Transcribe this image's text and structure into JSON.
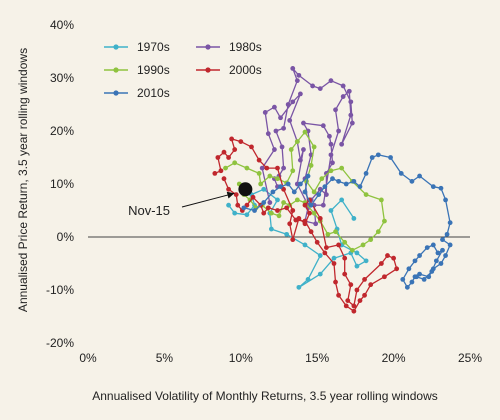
{
  "chart_data": {
    "type": "scatter",
    "title": "",
    "xlabel": "Annualised Volatility of Monthly Returns, 3.5 year rolling windows",
    "ylabel": "Annualised Price Return, 3.5 year rolling windows",
    "xlim": [
      0,
      25
    ],
    "ylim": [
      -20,
      40
    ],
    "x_ticks": [
      0,
      5,
      10,
      15,
      20,
      25
    ],
    "y_ticks": [
      -20,
      -10,
      0,
      10,
      20,
      30,
      40
    ],
    "x_tick_labels": [
      "0%",
      "5%",
      "10%",
      "15%",
      "20%",
      "25%"
    ],
    "y_tick_labels": [
      "-20%",
      "-10%",
      "0%",
      "10%",
      "20%",
      "30%",
      "40%"
    ],
    "negative_tick_color": "#c0272d",
    "legend_position": "top-left",
    "series": [
      {
        "name": "1970s",
        "color": "#3fb1c9",
        "points": [
          [
            9.2,
            6
          ],
          [
            9.6,
            4.5
          ],
          [
            10.4,
            4.2
          ],
          [
            10.9,
            6
          ],
          [
            10.7,
            8
          ],
          [
            11.5,
            9
          ],
          [
            12.4,
            7
          ],
          [
            11.9,
            4.5
          ],
          [
            12,
            1.5
          ],
          [
            13,
            0.5
          ],
          [
            14.2,
            -1.5
          ],
          [
            15.2,
            -3.5
          ],
          [
            14.4,
            -8
          ],
          [
            13.8,
            -9.5
          ],
          [
            15.2,
            -7
          ],
          [
            16.1,
            -4
          ],
          [
            17.2,
            -3
          ],
          [
            17.6,
            -5.5
          ],
          [
            18.2,
            -4.5
          ],
          [
            17.6,
            -3
          ],
          [
            16.6,
            -1.5
          ],
          [
            16.3,
            1.5
          ],
          [
            15.9,
            5
          ],
          [
            16.6,
            7
          ],
          [
            17.4,
            3.5
          ]
        ]
      },
      {
        "name": "1980s",
        "color": "#7a55a5",
        "points": [
          [
            11.9,
            6.5
          ],
          [
            11.4,
            13
          ],
          [
            12.2,
            16.5
          ],
          [
            11.8,
            19.5
          ],
          [
            11.6,
            23.5
          ],
          [
            12.2,
            24.5
          ],
          [
            12.6,
            22.5
          ],
          [
            13.4,
            25.5
          ],
          [
            13.9,
            27
          ],
          [
            13.2,
            22
          ],
          [
            13.7,
            18
          ],
          [
            13.9,
            14.5
          ],
          [
            14.1,
            16.5
          ],
          [
            13.7,
            10
          ],
          [
            14.4,
            6
          ],
          [
            14.2,
            11
          ],
          [
            14.6,
            15.5
          ],
          [
            14.4,
            20
          ],
          [
            14.1,
            21.5
          ],
          [
            15.4,
            21
          ],
          [
            15.8,
            19
          ],
          [
            15.9,
            17.5
          ],
          [
            16,
            14
          ],
          [
            15.6,
            12
          ],
          [
            15.6,
            8
          ],
          [
            15.2,
            9
          ],
          [
            14.6,
            7
          ],
          [
            14.4,
            5.5
          ],
          [
            14.2,
            3
          ],
          [
            14.9,
            2.5
          ],
          [
            14.8,
            6
          ],
          [
            15.4,
            6
          ],
          [
            15.9,
            15.5
          ],
          [
            16.4,
            20
          ],
          [
            16.2,
            24
          ],
          [
            16.7,
            26.5
          ],
          [
            17.1,
            27.5
          ],
          [
            17.2,
            23
          ],
          [
            16.6,
            17.5
          ],
          [
            17.3,
            21.5
          ],
          [
            17.2,
            25.5
          ],
          [
            16.7,
            28.5
          ],
          [
            15.9,
            29.5
          ],
          [
            15.2,
            28
          ],
          [
            14.7,
            28.5
          ],
          [
            13.8,
            30.5
          ],
          [
            13.4,
            31.8
          ],
          [
            13.7,
            29.5
          ],
          [
            13.1,
            25
          ],
          [
            12.8,
            20.5
          ],
          [
            12.3,
            20
          ],
          [
            12.7,
            17
          ],
          [
            12.8,
            13
          ],
          [
            12.5,
            11.5
          ],
          [
            12.2,
            11
          ],
          [
            12.4,
            9.5
          ]
        ]
      },
      {
        "name": "1990s",
        "color": "#8fc33f",
        "points": [
          [
            9,
            13
          ],
          [
            9.6,
            14
          ],
          [
            10.4,
            13
          ],
          [
            11.2,
            12
          ],
          [
            11.3,
            10
          ],
          [
            11.9,
            11.5
          ],
          [
            12.4,
            11
          ],
          [
            13,
            10.2
          ],
          [
            13.4,
            12.5
          ],
          [
            13.3,
            16.5
          ],
          [
            13.7,
            18
          ],
          [
            14.2,
            19.8
          ],
          [
            14.8,
            17
          ],
          [
            14.6,
            13.5
          ],
          [
            14.3,
            10.5
          ],
          [
            14.8,
            8.5
          ],
          [
            15.3,
            11
          ],
          [
            15.9,
            12.5
          ],
          [
            16.6,
            13
          ],
          [
            17.3,
            10.5
          ],
          [
            18.2,
            8
          ],
          [
            19.2,
            7
          ],
          [
            19.4,
            3
          ],
          [
            19,
            1
          ],
          [
            18.5,
            -0.5
          ],
          [
            18,
            -1.5
          ],
          [
            17.3,
            -2.5
          ],
          [
            16.8,
            -1
          ],
          [
            16.2,
            1
          ],
          [
            15.7,
            0.5
          ],
          [
            15.2,
            3
          ],
          [
            14.8,
            4.5
          ],
          [
            14.2,
            6.5
          ],
          [
            13.7,
            7
          ],
          [
            13.2,
            6
          ],
          [
            12.8,
            6.5
          ],
          [
            12.5,
            4
          ],
          [
            12,
            4.5
          ],
          [
            11.4,
            6
          ],
          [
            11,
            5.5
          ],
          [
            10.6,
            7
          ],
          [
            10.2,
            8
          ],
          [
            9.9,
            10
          ]
        ]
      },
      {
        "name": "2000s",
        "color": "#c0272d",
        "points": [
          [
            8.3,
            12
          ],
          [
            8.7,
            12.5
          ],
          [
            8.5,
            15
          ],
          [
            8.9,
            16
          ],
          [
            9.2,
            15
          ],
          [
            9.6,
            16.5
          ],
          [
            9.4,
            18.5
          ],
          [
            10,
            18
          ],
          [
            10.7,
            17
          ],
          [
            11.2,
            14.5
          ],
          [
            11.7,
            13
          ],
          [
            12.4,
            13
          ],
          [
            12.8,
            9
          ],
          [
            13.4,
            5
          ],
          [
            13.2,
            2.5
          ],
          [
            13.4,
            -0.5
          ],
          [
            13.8,
            3.5
          ],
          [
            14.2,
            2.5
          ],
          [
            14.5,
            4.5
          ],
          [
            14.2,
            6
          ],
          [
            14.5,
            7
          ],
          [
            15.2,
            3.5
          ],
          [
            15.6,
            -2
          ],
          [
            16.4,
            -1.5
          ],
          [
            16.8,
            -4
          ],
          [
            16.8,
            -7
          ],
          [
            17.2,
            -9
          ],
          [
            17,
            -12
          ],
          [
            17.4,
            -13
          ],
          [
            17.6,
            -10
          ],
          [
            18.1,
            -8
          ],
          [
            19.2,
            -5
          ],
          [
            19.6,
            -3.5
          ],
          [
            20,
            -4
          ],
          [
            20.2,
            -6
          ],
          [
            19.4,
            -7.5
          ],
          [
            18.5,
            -9
          ],
          [
            18.1,
            -11
          ],
          [
            17.8,
            -12
          ],
          [
            17.4,
            -14
          ],
          [
            16.9,
            -13
          ],
          [
            16.4,
            -11
          ],
          [
            16.2,
            -8.5
          ],
          [
            16.1,
            -5
          ],
          [
            15.5,
            -3
          ],
          [
            15,
            -1
          ],
          [
            14.6,
            1
          ],
          [
            14.2,
            3
          ],
          [
            13.6,
            3.2
          ],
          [
            13,
            5.5
          ],
          [
            12.4,
            5
          ],
          [
            11.8,
            5.5
          ],
          [
            11.5,
            4.5
          ],
          [
            11.3,
            6
          ],
          [
            10.8,
            7.5
          ],
          [
            10.4,
            6
          ],
          [
            10.1,
            5
          ],
          [
            9.8,
            6
          ],
          [
            9.7,
            8
          ],
          [
            9.2,
            9
          ],
          [
            8.9,
            11
          ]
        ]
      },
      {
        "name": "2010s",
        "color": "#3a74b6",
        "points": [
          [
            10.2,
            5.5
          ],
          [
            10.9,
            5
          ],
          [
            11.5,
            6.5
          ],
          [
            12.1,
            8.5
          ],
          [
            12.6,
            9.5
          ],
          [
            13.1,
            10
          ],
          [
            13.5,
            8.5
          ],
          [
            13.9,
            10
          ],
          [
            14.4,
            11.5
          ],
          [
            14.2,
            8.5
          ],
          [
            14.6,
            6
          ],
          [
            15.1,
            8
          ],
          [
            15.5,
            9.5
          ],
          [
            16,
            11
          ],
          [
            16.4,
            10.5
          ],
          [
            16.9,
            10
          ],
          [
            17.4,
            10.5
          ],
          [
            17.8,
            9.5
          ],
          [
            18.2,
            12
          ],
          [
            18.6,
            15
          ],
          [
            19,
            15.5
          ],
          [
            19.8,
            15
          ],
          [
            20.5,
            12
          ],
          [
            21.2,
            10.5
          ],
          [
            21.7,
            11.5
          ],
          [
            22.6,
            9.5
          ],
          [
            23.1,
            9.2
          ],
          [
            23.4,
            7
          ],
          [
            23.7,
            2.7
          ],
          [
            23.5,
            0.5
          ],
          [
            23.2,
            -0.5
          ],
          [
            23.7,
            -1.5
          ],
          [
            23.4,
            -3.5
          ],
          [
            23.1,
            -5
          ],
          [
            22.6,
            -6
          ],
          [
            22.3,
            -7.5
          ],
          [
            21.7,
            -7
          ],
          [
            21.4,
            -7.5
          ],
          [
            21.2,
            -8.5
          ],
          [
            20.9,
            -9.5
          ],
          [
            20.6,
            -8
          ],
          [
            21,
            -6
          ],
          [
            21.4,
            -4.5
          ],
          [
            21.7,
            -3.5
          ],
          [
            22.2,
            -2
          ],
          [
            22.6,
            -1.5
          ],
          [
            22.9,
            -3
          ],
          [
            23.2,
            -2.5
          ],
          [
            22.8,
            -4.5
          ],
          [
            22.5,
            -6.5
          ],
          [
            22,
            -8
          ],
          [
            21.5,
            -7.5
          ]
        ]
      }
    ],
    "annotation": {
      "label": "Nov-15",
      "point": [
        10.3,
        9
      ],
      "marker_color": "#111111"
    }
  }
}
